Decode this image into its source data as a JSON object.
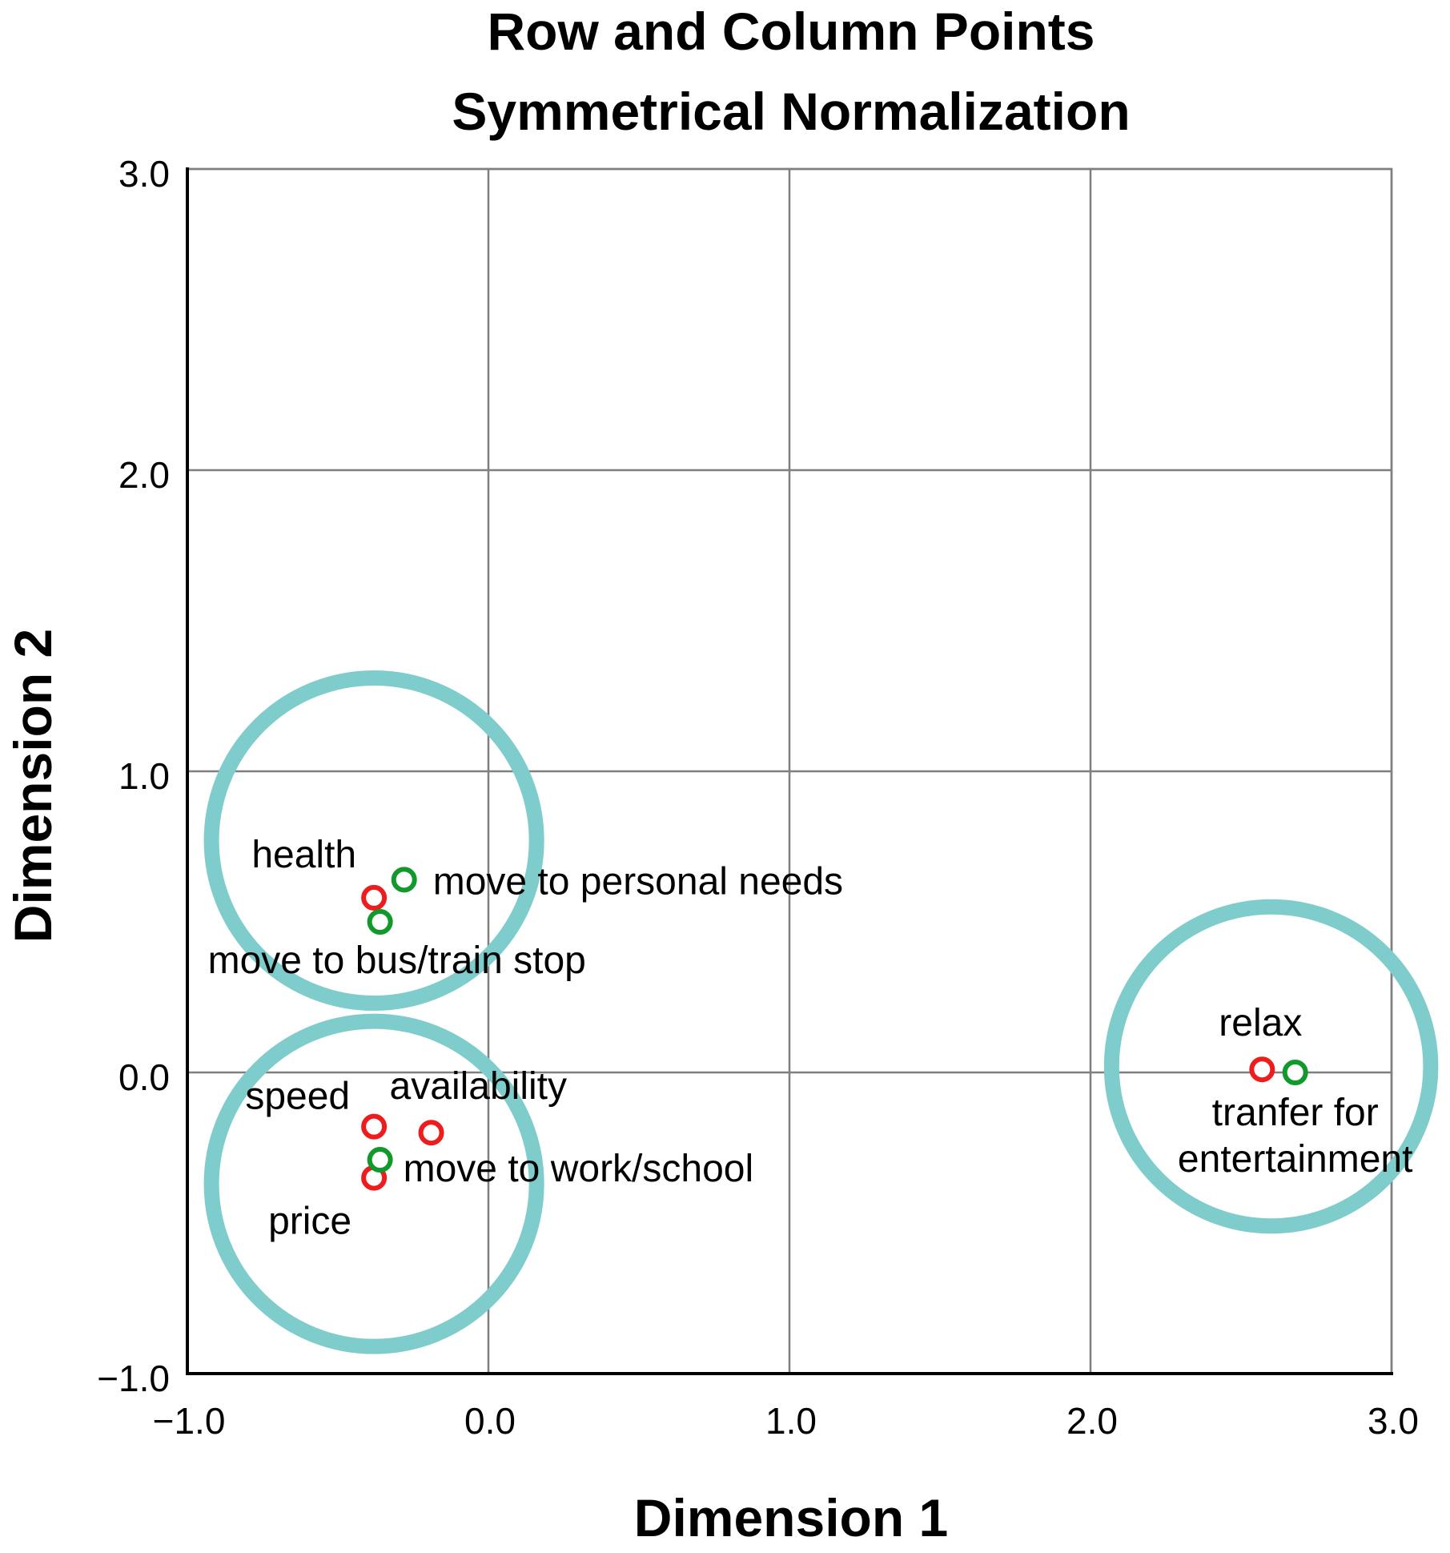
{
  "chart_data": {
    "type": "scatter",
    "title": "Row and Column Points",
    "subtitle": "Symmetrical Normalization",
    "xlabel": "Dimension 1",
    "ylabel": "Dimension 2",
    "xlim": [
      -1.0,
      3.0
    ],
    "ylim": [
      -1.0,
      3.0
    ],
    "xticks": [
      -1.0,
      0.0,
      1.0,
      2.0,
      3.0
    ],
    "yticks": [
      -1.0,
      0.0,
      1.0,
      2.0,
      3.0
    ],
    "xtick_labels": [
      "−1.0",
      "0.0",
      "1.0",
      "2.0",
      "3.0"
    ],
    "ytick_labels": [
      "−1.0",
      "0.0",
      "1.0",
      "2.0",
      "3.0"
    ],
    "grid": true,
    "colors": {
      "row_points": "#ee1c1c",
      "column_points": "#119a2b",
      "cluster_circles": "#7ecccb",
      "grid": "#7f7f7f"
    },
    "series": [
      {
        "name": "Row points",
        "color": "#ee1c1c",
        "points": [
          {
            "label": "health",
            "x": -0.38,
            "y": 0.58
          },
          {
            "label": "speed",
            "x": -0.38,
            "y": -0.18
          },
          {
            "label": "availability",
            "x": -0.19,
            "y": -0.2
          },
          {
            "label": "price",
            "x": -0.38,
            "y": -0.35
          },
          {
            "label": "relax",
            "x": 2.57,
            "y": 0.01
          }
        ]
      },
      {
        "name": "Column points",
        "color": "#119a2b",
        "points": [
          {
            "label": "move to personal needs",
            "x": -0.28,
            "y": 0.64
          },
          {
            "label": "move to bus/train stop",
            "x": -0.36,
            "y": 0.5
          },
          {
            "label": "move to work/school",
            "x": -0.36,
            "y": -0.29
          },
          {
            "label": "tranfer for entertainment",
            "x": 2.68,
            "y": 0.0
          }
        ]
      }
    ],
    "annotations": [
      {
        "type": "cluster_circle",
        "cx": -0.38,
        "cy": 0.77,
        "r": 0.54
      },
      {
        "type": "cluster_circle",
        "cx": -0.38,
        "cy": -0.37,
        "r": 0.54
      },
      {
        "type": "cluster_circle",
        "cx": 2.6,
        "cy": 0.02,
        "r": 0.53
      }
    ]
  }
}
